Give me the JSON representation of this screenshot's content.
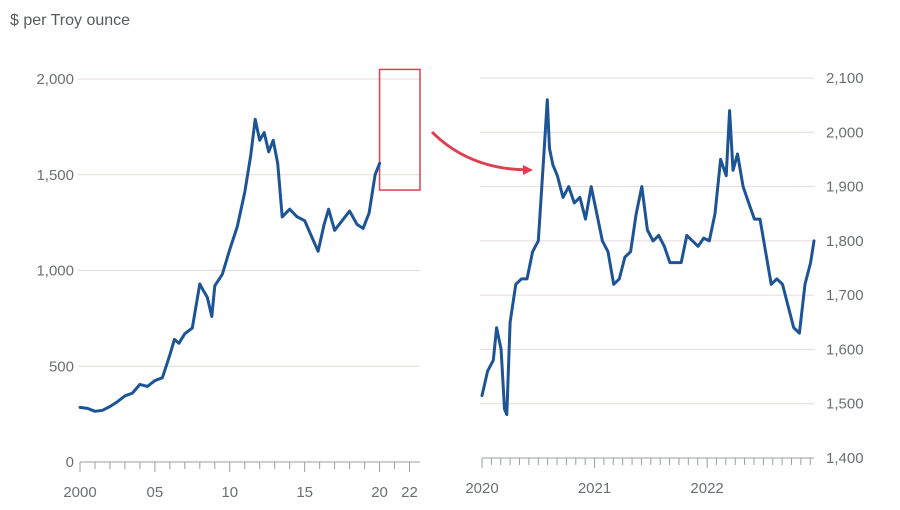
{
  "unit_label": "$ per Troy ounce",
  "colors": {
    "series": "#1c5496",
    "highlight": "#d9424e",
    "grid": "#e7d9d9",
    "axis": "#9a9ea2",
    "text": "#6b6f73"
  },
  "chart_data": [
    {
      "type": "line",
      "title": "",
      "ylabel": "$ per Troy ounce",
      "xlabel": "",
      "grid": true,
      "xlim": [
        2000,
        2022.7
      ],
      "ylim": [
        0,
        2000
      ],
      "x_ticks": [
        2000,
        2005,
        2010,
        2015,
        2020,
        2022
      ],
      "x_tick_labels": [
        "2000",
        "05",
        "10",
        "15",
        "20",
        "22"
      ],
      "y_ticks": [
        0,
        500,
        1000,
        1500,
        2000
      ],
      "y_tick_labels": [
        "0",
        "500",
        "1,000",
        "1,500",
        "2,000"
      ],
      "highlight_box": {
        "x_range": [
          2020.0,
          2022.7
        ],
        "y_range": [
          1420,
          2050
        ]
      },
      "series": [
        {
          "x": [
            2000.0,
            2000.5,
            2001.0,
            2001.5,
            2002.0,
            2002.5,
            2003.0,
            2003.5,
            2004.0,
            2004.5,
            2005.0,
            2005.5,
            2006.0,
            2006.3,
            2006.6,
            2007.0,
            2007.5,
            2008.0,
            2008.2,
            2008.5,
            2008.8,
            2009.0,
            2009.5,
            2010.0,
            2010.5,
            2011.0,
            2011.4,
            2011.7,
            2012.0,
            2012.3,
            2012.6,
            2012.9,
            2013.2,
            2013.5,
            2014.0,
            2014.5,
            2015.0,
            2015.5,
            2015.9,
            2016.3,
            2016.6,
            2017.0,
            2017.5,
            2018.0,
            2018.5,
            2018.9,
            2019.3,
            2019.7,
            2020.0
          ],
          "values": [
            285,
            280,
            265,
            270,
            290,
            315,
            345,
            360,
            405,
            395,
            425,
            440,
            560,
            640,
            620,
            670,
            700,
            930,
            900,
            860,
            760,
            920,
            980,
            1110,
            1230,
            1410,
            1600,
            1790,
            1680,
            1720,
            1620,
            1680,
            1560,
            1280,
            1320,
            1280,
            1260,
            1170,
            1100,
            1240,
            1320,
            1210,
            1260,
            1310,
            1240,
            1220,
            1300,
            1500,
            1560
          ]
        }
      ]
    },
    {
      "type": "line",
      "title": "",
      "xlabel": "",
      "ylabel": "",
      "grid": true,
      "y_axis_side": "right",
      "xlim": [
        2020.0,
        2022.95
      ],
      "ylim": [
        1400,
        2100
      ],
      "x_ticks": [
        2020,
        2021,
        2022
      ],
      "x_tick_labels": [
        "2020",
        "2021",
        "2022"
      ],
      "y_ticks": [
        1400,
        1500,
        1600,
        1700,
        1800,
        1900,
        2000,
        2100
      ],
      "y_tick_labels": [
        "1,400",
        "1,500",
        "1,600",
        "1,700",
        "1,800",
        "1,900",
        "2,000",
        "2,100"
      ],
      "series": [
        {
          "x": [
            2020.0,
            2020.05,
            2020.1,
            2020.13,
            2020.17,
            2020.2,
            2020.22,
            2020.25,
            2020.3,
            2020.35,
            2020.4,
            2020.45,
            2020.5,
            2020.55,
            2020.58,
            2020.6,
            2020.63,
            2020.67,
            2020.72,
            2020.77,
            2020.82,
            2020.87,
            2020.92,
            2020.97,
            2021.02,
            2021.07,
            2021.12,
            2021.17,
            2021.22,
            2021.27,
            2021.32,
            2021.37,
            2021.42,
            2021.47,
            2021.52,
            2021.57,
            2021.62,
            2021.67,
            2021.72,
            2021.77,
            2021.82,
            2021.87,
            2021.92,
            2021.97,
            2022.02,
            2022.07,
            2022.12,
            2022.17,
            2022.2,
            2022.23,
            2022.27,
            2022.32,
            2022.37,
            2022.42,
            2022.47,
            2022.52,
            2022.57,
            2022.62,
            2022.67,
            2022.72,
            2022.77,
            2022.82,
            2022.87,
            2022.92,
            2022.95
          ],
          "values": [
            1515,
            1560,
            1580,
            1640,
            1600,
            1490,
            1480,
            1650,
            1720,
            1730,
            1730,
            1780,
            1800,
            1960,
            2060,
            1970,
            1940,
            1920,
            1880,
            1900,
            1870,
            1880,
            1840,
            1900,
            1850,
            1800,
            1780,
            1720,
            1730,
            1770,
            1780,
            1850,
            1900,
            1820,
            1800,
            1810,
            1790,
            1760,
            1760,
            1760,
            1810,
            1800,
            1790,
            1805,
            1800,
            1850,
            1950,
            1920,
            2040,
            1930,
            1960,
            1900,
            1870,
            1840,
            1840,
            1780,
            1720,
            1730,
            1720,
            1680,
            1640,
            1630,
            1720,
            1760,
            1800
          ]
        }
      ]
    }
  ]
}
